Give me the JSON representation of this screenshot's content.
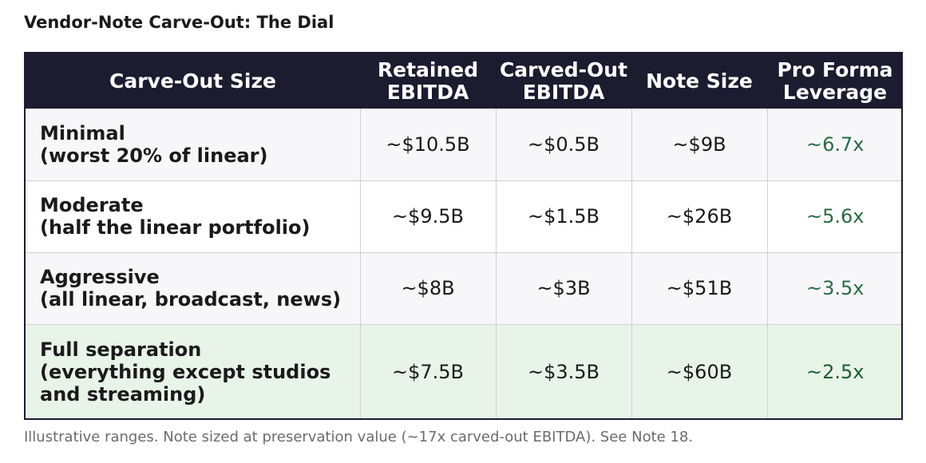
{
  "title": "Vendor-Note Carve-Out: The Dial",
  "table": {
    "headers": [
      {
        "lines": [
          "Carve-Out Size"
        ]
      },
      {
        "lines": [
          "Retained",
          "EBITDA"
        ]
      },
      {
        "lines": [
          "Carved-Out",
          "EBITDA"
        ]
      },
      {
        "lines": [
          "Note Size"
        ]
      },
      {
        "lines": [
          "Pro Forma",
          "Leverage"
        ]
      }
    ],
    "rows": [
      {
        "label": [
          "Minimal",
          "(worst 20% of linear)"
        ],
        "retained_ebitda": "~$10.5B",
        "carved_out_ebitda": "~$0.5B",
        "note_size": "~$9B",
        "pro_forma_leverage": "~6.7x"
      },
      {
        "label": [
          "Moderate",
          "(half the linear portfolio)"
        ],
        "retained_ebitda": "~$9.5B",
        "carved_out_ebitda": "~$1.5B",
        "note_size": "~$26B",
        "pro_forma_leverage": "~5.6x"
      },
      {
        "label": [
          "Aggressive",
          "(all linear, broadcast, news)"
        ],
        "retained_ebitda": "~$8B",
        "carved_out_ebitda": "~$3B",
        "note_size": "~$51B",
        "pro_forma_leverage": "~3.5x"
      },
      {
        "label": [
          "Full separation",
          "(everything except studios",
          "and streaming)"
        ],
        "retained_ebitda": "~$7.5B",
        "carved_out_ebitda": "~$3.5B",
        "note_size": "~$60B",
        "pro_forma_leverage": "~2.5x"
      }
    ]
  },
  "footnote": "Illustrative ranges. Note sized at preservation value (~17x carved-out EBITDA). See Note 18.",
  "colors": {
    "header_bg": "#1c1c30",
    "header_text": "#ffffff",
    "leverage_text": "#2d6a45",
    "highlight_row_bg": "#e8f4e8",
    "stripe_bg": "#f7f7fa"
  }
}
